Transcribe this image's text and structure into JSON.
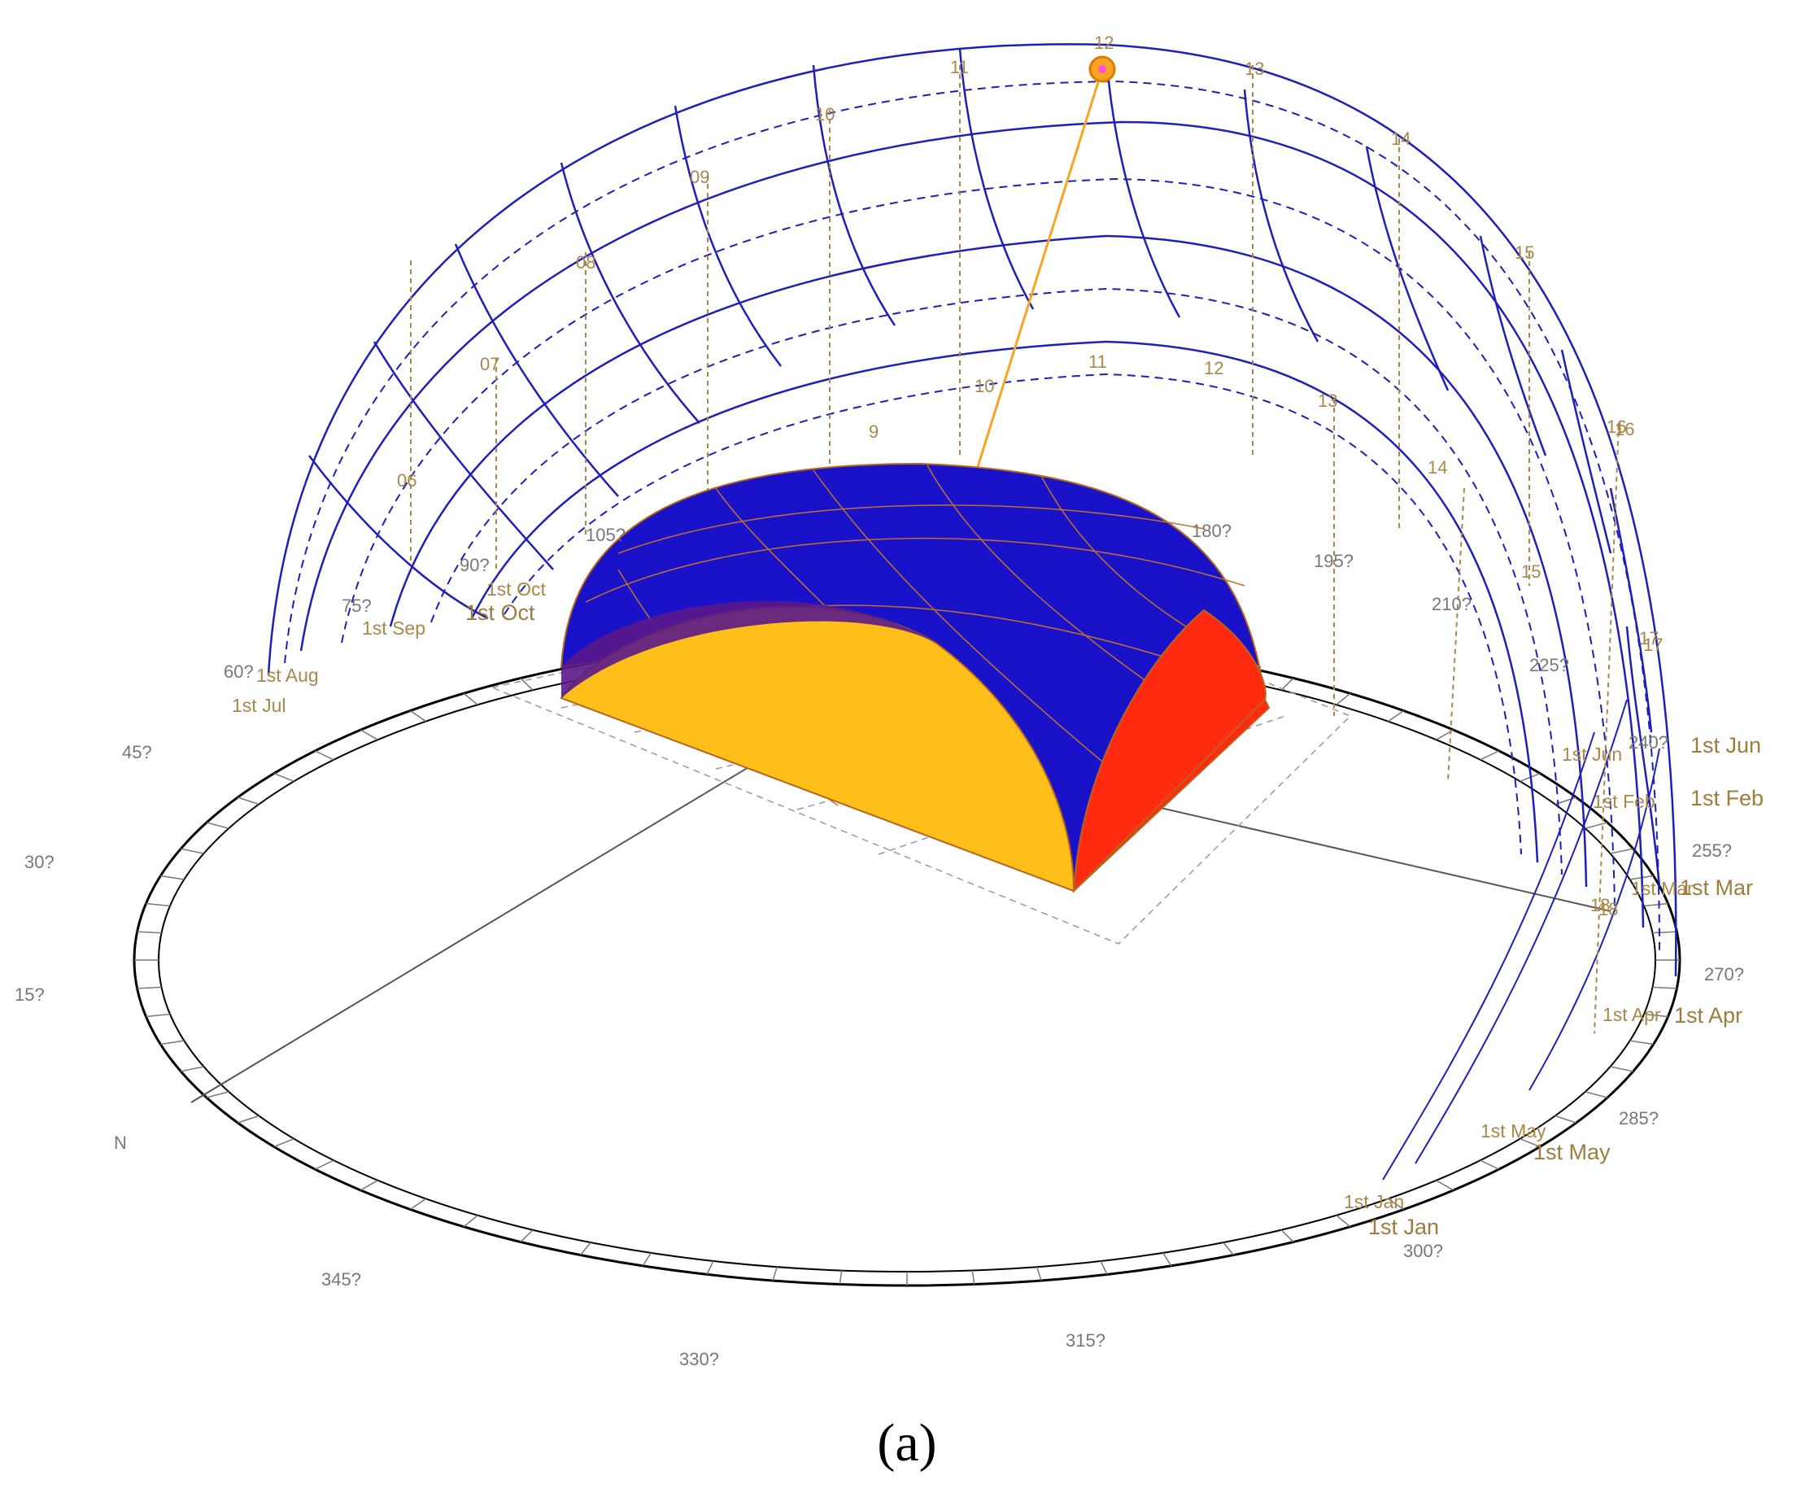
{
  "figure": {
    "caption": "(a)",
    "north_label": "N",
    "sun_marker_color": "#f5a623",
    "colors": {
      "sky_dome_lines": "#1f1fb8",
      "hour_lines": "#a8884a",
      "building_roof": "#1a12c8",
      "building_south_face": "#ffbf1a",
      "building_east_face": "#ff2a10",
      "ground_ring": "#000000"
    }
  },
  "azimuth_labels": [
    "N",
    "15?",
    "30?",
    "45?",
    "60?",
    "75?",
    "90?",
    "105?",
    "180?",
    "195?",
    "210?",
    "225?",
    "240?",
    "255?",
    "270?",
    "285?",
    "300?",
    "315?",
    "330?",
    "345?"
  ],
  "hour_labels_upper": [
    "06",
    "07",
    "08",
    "09",
    "10",
    "11",
    "12",
    "13",
    "14",
    "15",
    "16",
    "17",
    "18"
  ],
  "hour_labels_lower": [
    "9",
    "10",
    "11",
    "12",
    "13",
    "14",
    "15",
    "16",
    "17",
    "18"
  ],
  "date_labels": {
    "left": [
      "1st Jul",
      "1st Aug",
      "1st Sep",
      "1st Oct",
      "1st Oct"
    ],
    "right": [
      "1st Jun",
      "1st Jun",
      "1st Feb",
      "1st Feb",
      "1st Mar",
      "1st Mar",
      "1st Apr",
      "1st Apr",
      "1st May",
      "1st May",
      "1st Jan",
      "1st Jan"
    ]
  }
}
